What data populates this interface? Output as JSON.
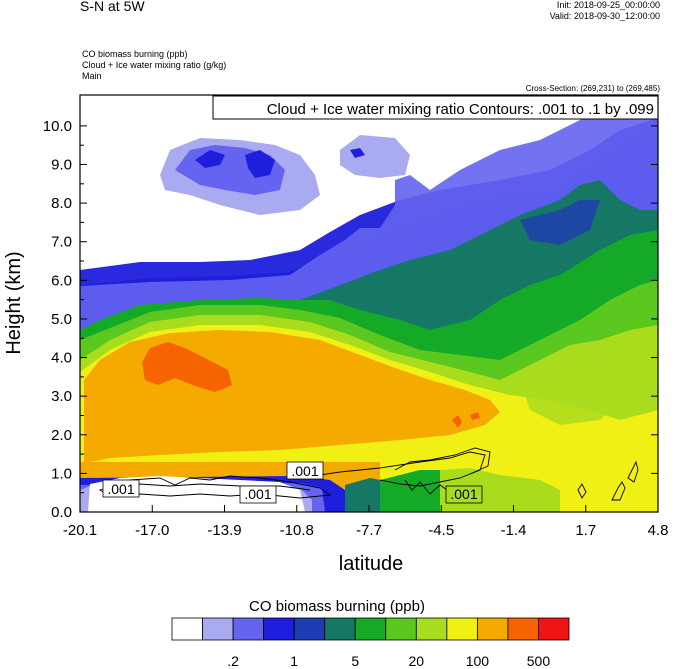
{
  "header": {
    "title": "S-N at 5W",
    "init": "Init: 2018-09-25_00:00:00",
    "valid": "Valid: 2018-09-30_12:00:00",
    "fields": [
      "CO biomass burning   (ppb)",
      "Cloud + Ice water mixing ratio   (g/kg)",
      "Main"
    ],
    "cross_section": "Cross-Section: (269,231) to (269,485)"
  },
  "chart_data": {
    "type": "heatmap",
    "title": "S-N at 5W",
    "xlabel": "latitude",
    "ylabel": "Height (km)",
    "xlim": [
      -20.1,
      4.8
    ],
    "ylim": [
      0.0,
      10.8
    ],
    "x_ticks": [
      "-20.1",
      "-17.0",
      "-13.9",
      "-10.8",
      "-7.7",
      "-4.5",
      "-1.4",
      "1.7",
      "4.8"
    ],
    "y_ticks": [
      "0.0",
      "1.0",
      "2.0",
      "3.0",
      "4.0",
      "5.0",
      "6.0",
      "7.0",
      "8.0",
      "9.0",
      "10.0"
    ],
    "contour_info": "Cloud + Ice water mixing ratio Contours: .001 to .1 by .099",
    "contour_labels": [
      ".001",
      ".001",
      ".001",
      ".001"
    ],
    "colorbar": {
      "title": "CO biomass burning  (ppb)",
      "colors": [
        "#ffffff",
        "#aaaaf0",
        "#6464f0",
        "#1e1edc",
        "#1e3cb4",
        "#147864",
        "#14aa28",
        "#5ac81e",
        "#aadc1e",
        "#f0f014",
        "#f5aa00",
        "#f56400",
        "#f01414"
      ],
      "labels": [
        ".2",
        "1",
        "5",
        "20",
        "100",
        "500"
      ]
    }
  }
}
